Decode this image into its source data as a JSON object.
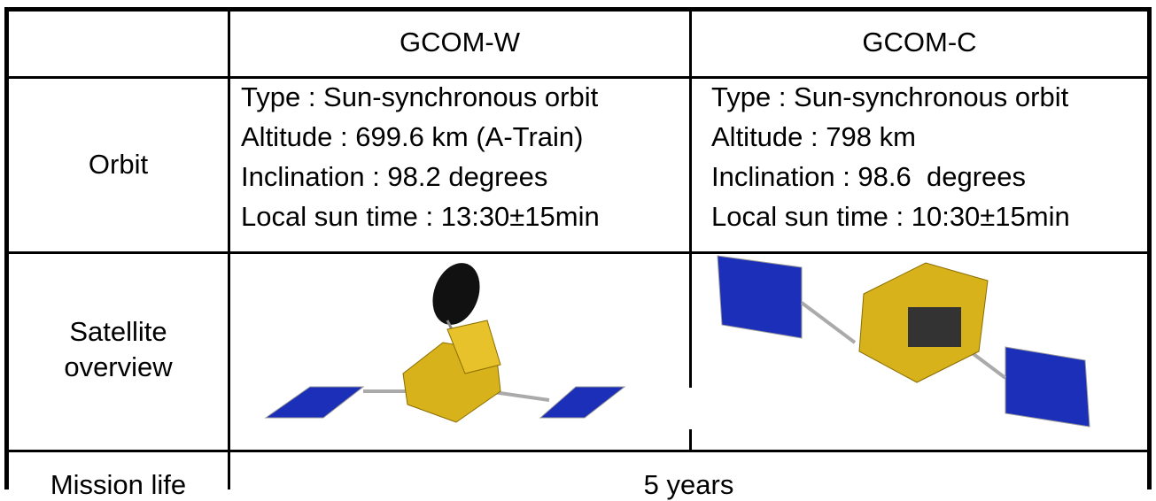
{
  "table": {
    "columns": [
      "GCOM-W",
      "GCOM-C"
    ],
    "rows": [
      {
        "label": "Orbit",
        "cells": [
          [
            "Type : Sun-synchronous orbit",
            "Altitude : 699.6 km (A-Train)",
            "Inclination : 98.2 degrees",
            "Local sun time : 13:30±15min"
          ],
          [
            "Type : Sun-synchronous orbit",
            "Altitude : 798 km",
            "Inclination : 98.6  degrees",
            "Local sun time : 10:30±15min"
          ]
        ]
      },
      {
        "label": [
          "Satellite",
          "overview"
        ]
      },
      {
        "label": "Mission life",
        "merged": "5 years"
      }
    ]
  }
}
